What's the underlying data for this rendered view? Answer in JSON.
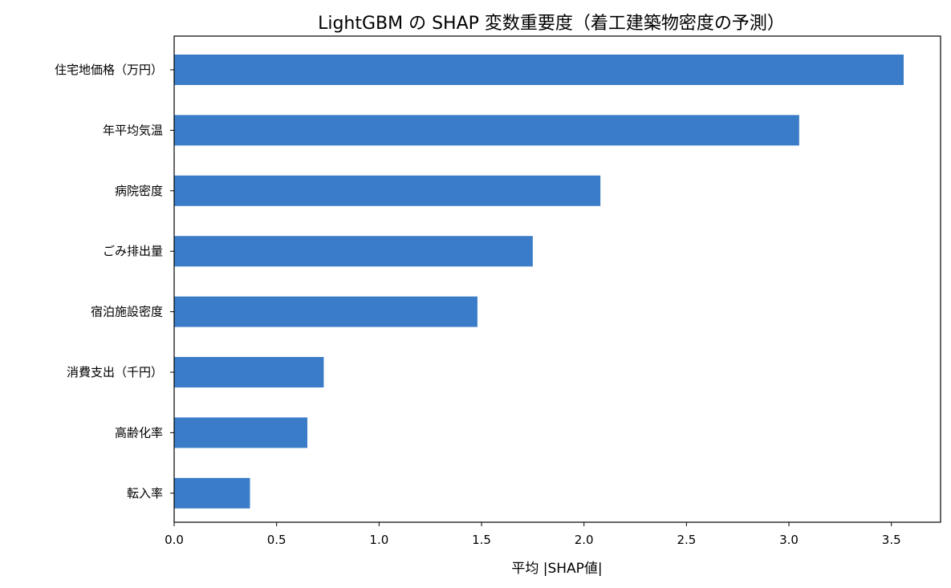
{
  "chart_data": {
    "type": "bar",
    "orientation": "horizontal",
    "title": "LightGBM の SHAP 変数重要度（着工建築物密度の予測）",
    "xlabel": "平均 |SHAP値|",
    "ylabel": "",
    "categories": [
      "住宅地価格（万円）",
      "年平均気温",
      "病院密度",
      "ごみ排出量",
      "宿泊施設密度",
      "消費支出（千円）",
      "高齢化率",
      "転入率"
    ],
    "values": [
      3.56,
      3.05,
      2.08,
      1.75,
      1.48,
      0.73,
      0.65,
      0.37
    ],
    "xlim": [
      0,
      3.74
    ],
    "xticks": [
      0.0,
      0.5,
      1.0,
      1.5,
      2.0,
      2.5,
      3.0,
      3.5
    ],
    "xtick_labels": [
      "0.0",
      "0.5",
      "1.0",
      "1.5",
      "2.0",
      "2.5",
      "3.0",
      "3.5"
    ],
    "bar_color": "#3a7cc8",
    "grid": false,
    "legend": "none"
  }
}
